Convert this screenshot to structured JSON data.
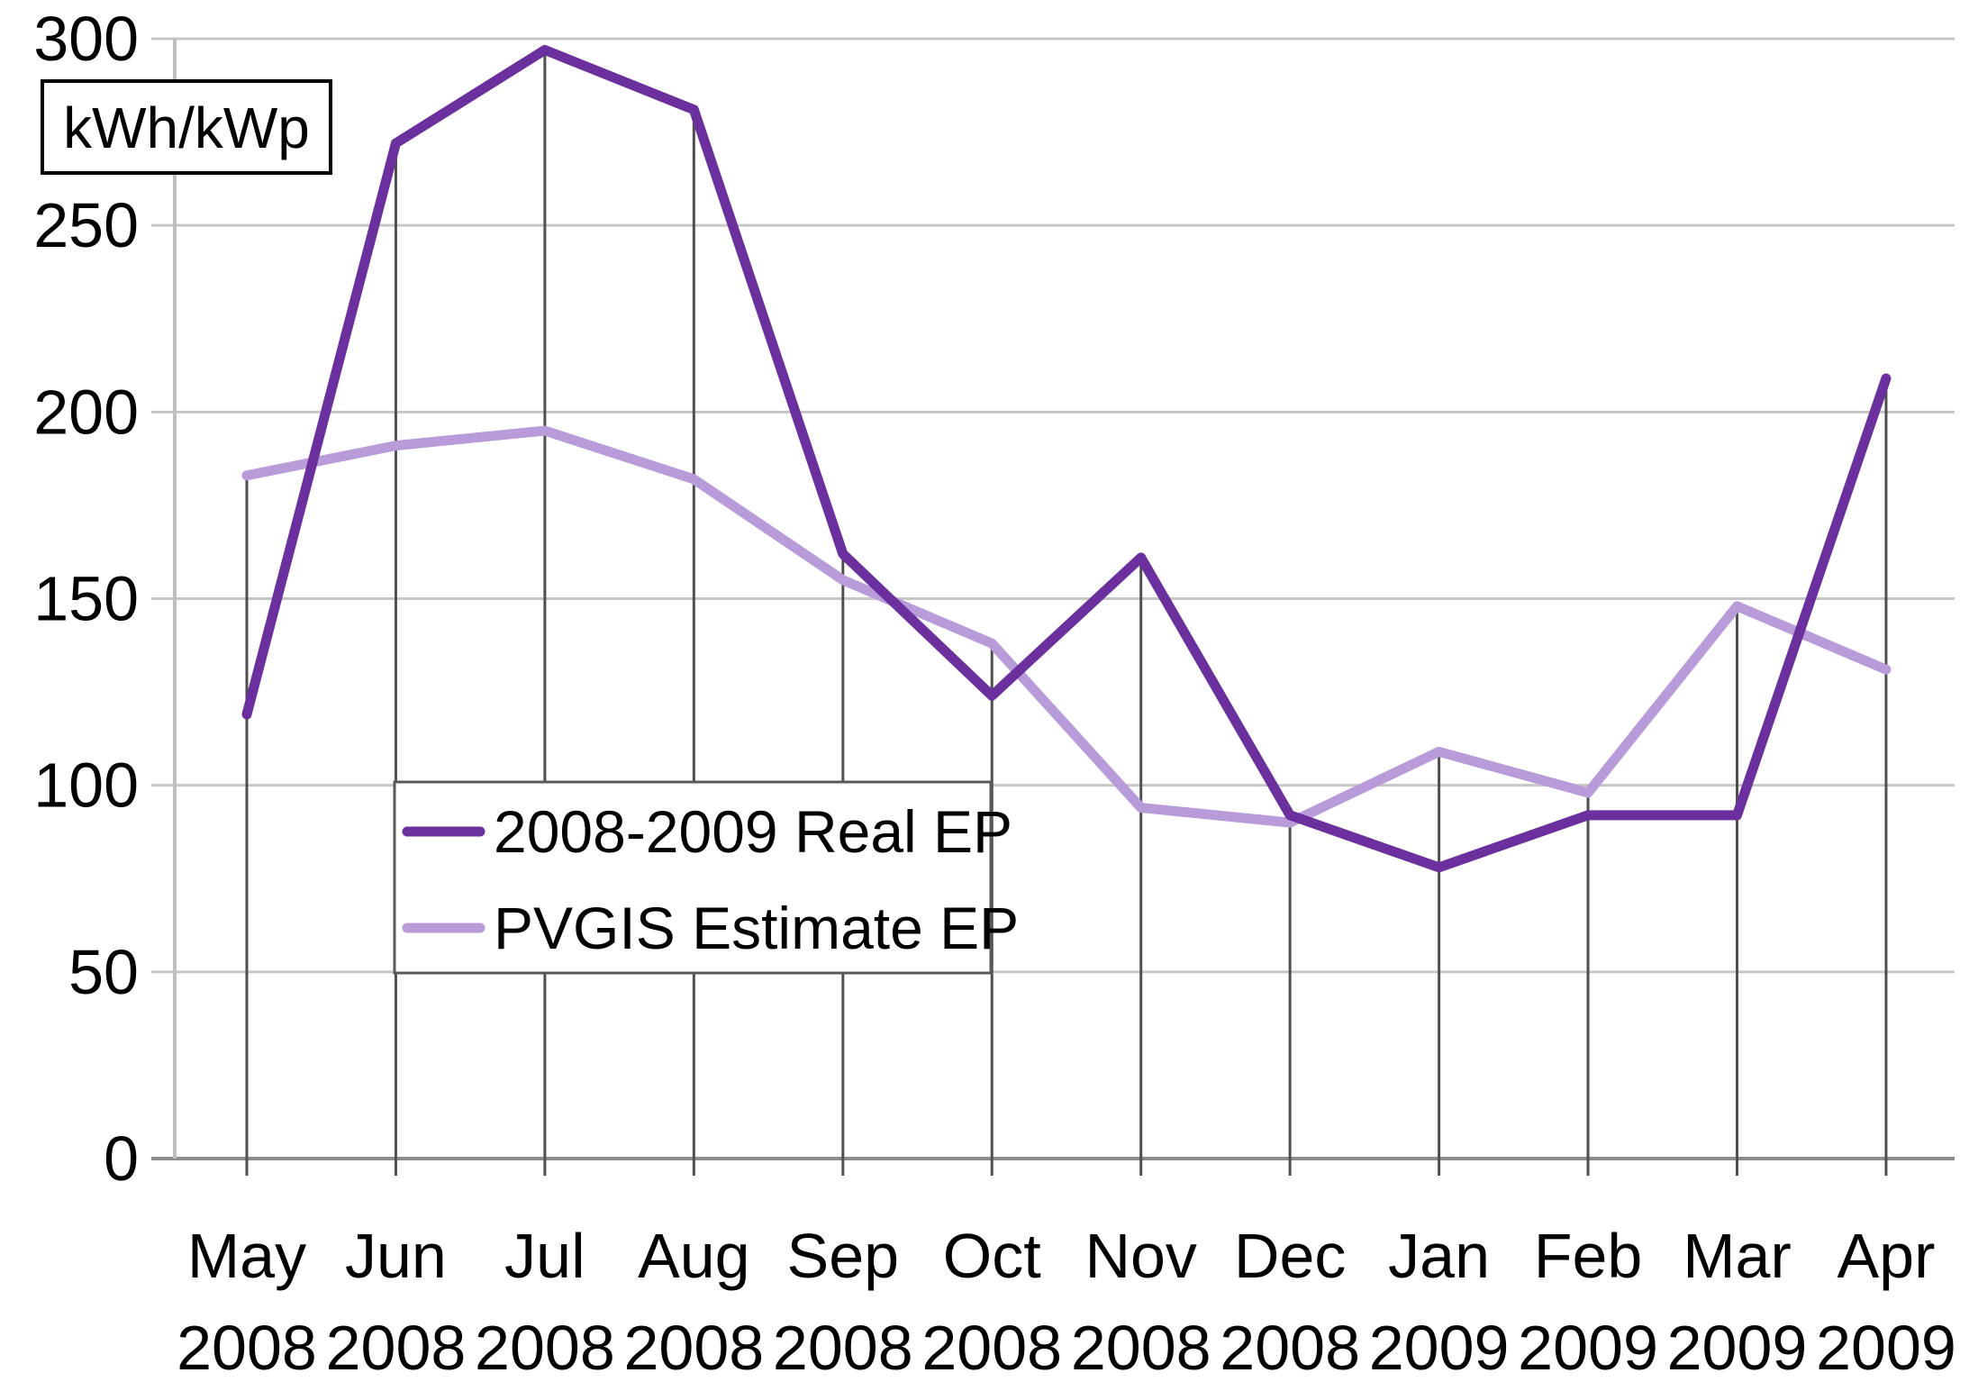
{
  "chart_data": {
    "type": "line",
    "unit_box_label": "kWh/kWp",
    "categories": [
      {
        "month": "May",
        "year": "2008"
      },
      {
        "month": "Jun",
        "year": "2008"
      },
      {
        "month": "Jul",
        "year": "2008"
      },
      {
        "month": "Aug",
        "year": "2008"
      },
      {
        "month": "Sep",
        "year": "2008"
      },
      {
        "month": "Oct",
        "year": "2008"
      },
      {
        "month": "Nov",
        "year": "2008"
      },
      {
        "month": "Dec",
        "year": "2008"
      },
      {
        "month": "Jan",
        "year": "2009"
      },
      {
        "month": "Feb",
        "year": "2009"
      },
      {
        "month": "Mar",
        "year": "2009"
      },
      {
        "month": "Apr",
        "year": "2009"
      }
    ],
    "series": [
      {
        "name": "2008-2009 Real EP",
        "color": "#6B2F9E",
        "values": [
          119,
          272,
          297,
          281,
          162,
          124,
          161,
          92,
          78,
          92,
          92,
          209
        ]
      },
      {
        "name": "PVGIS Estimate EP",
        "color": "#B79CD9",
        "values": [
          183,
          191,
          195,
          182,
          155,
          138,
          94,
          90,
          109,
          98,
          148,
          131
        ]
      }
    ],
    "ylim": [
      0,
      300
    ],
    "ytick_step": 50,
    "yticks": [
      0,
      50,
      100,
      150,
      200,
      250,
      300
    ],
    "grid": "horizontal gridlines plus vertical drop lines at each month",
    "legend_position": "inside plot, center-left"
  },
  "colors": {
    "background": "#FFFFFF",
    "gridline": "#C6C6C6",
    "axis_line": "#BFBFBF",
    "baseline": "#8C8C8C",
    "drop_line": "#4F4F4F",
    "text": "#000000",
    "legend_border": "#595959",
    "legend_fill": "#FFFFFF",
    "unit_box_border": "#000000",
    "unit_box_fill": "#FFFFFF"
  }
}
